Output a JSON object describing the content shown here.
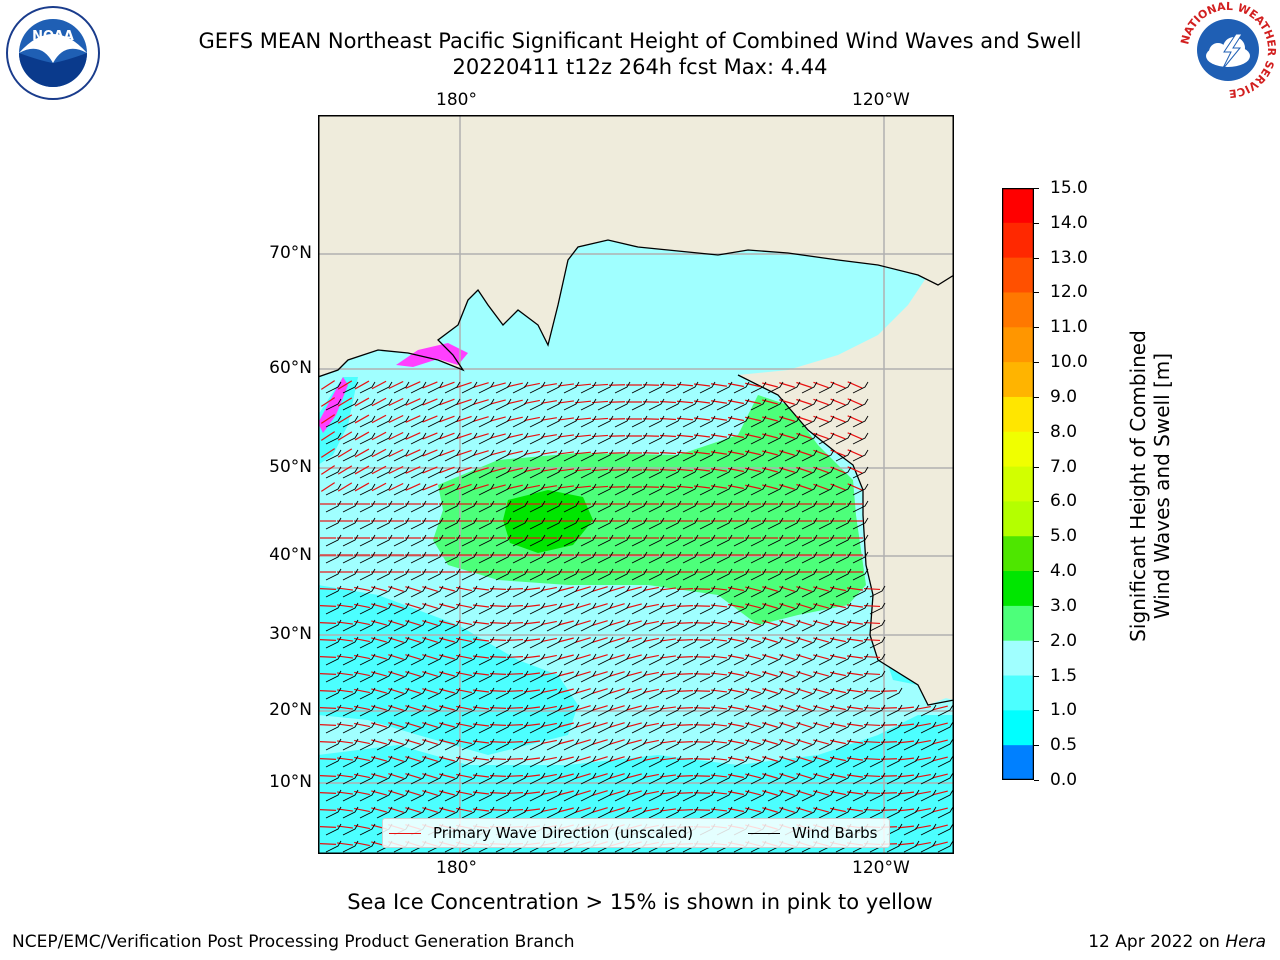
{
  "title": {
    "line1": "GEFS MEAN Northeast Pacific Significant Height of Combined Wind Waves and Swell",
    "line2": "20220411 t12z 264h fcst   Max: 4.44"
  },
  "logos": {
    "left": {
      "name": "noaa-logo",
      "text": "NOAA"
    },
    "right": {
      "name": "nws-logo",
      "text": "NATIONAL WEATHER SERVICE"
    }
  },
  "map": {
    "top_lon_labels": [
      "180°",
      "120°W"
    ],
    "bottom_lon_labels": [
      "180°",
      "120°W"
    ],
    "lat_labels": [
      "70°N",
      "60°N",
      "50°N",
      "40°N",
      "30°N",
      "20°N",
      "10°N"
    ],
    "colors": {
      "land": "#efecdc",
      "ice_free_ocean": "#ffffff",
      "waves_1_5_2": "#4cffff",
      "waves_2_3": "#a0ffff",
      "waves_3_4": "#4dff7a",
      "waves_4_5": "#00e600",
      "wave_arrows": "#e81010",
      "wind_barbs": "#000000",
      "sea_ice": "#ff40ff",
      "grid": "#b0b0b0"
    }
  },
  "legend": {
    "primary_wave": "Primary Wave Direction (unscaled)",
    "wind_barbs": "Wind Barbs"
  },
  "colorbar": {
    "label_line1": "Significant Height of Combined",
    "label_line2": "Wind Waves and Swell [m]",
    "ticks": [
      "15.0",
      "14.0",
      "13.0",
      "12.0",
      "11.0",
      "10.0",
      "9.0",
      "8.0",
      "7.0",
      "6.0",
      "5.0",
      "4.0",
      "3.0",
      "2.0",
      "1.5",
      "1.0",
      "0.5",
      "0.0"
    ],
    "colors": [
      "#ff0000",
      "#ff2800",
      "#ff5000",
      "#ff7800",
      "#ff9600",
      "#ffb400",
      "#ffe600",
      "#f0ff00",
      "#d2ff00",
      "#b4ff00",
      "#4ee600",
      "#00e600",
      "#4dff7a",
      "#a0ffff",
      "#4cffff",
      "#00ffff",
      "#0080ff",
      "#0000ff"
    ]
  },
  "caption": "Sea Ice Concentration > 15% is shown in pink to yellow",
  "footer": {
    "left": "NCEP/EMC/Verification Post Processing Product Generation Branch",
    "date": "12 Apr 2022 on",
    "host": "Hera"
  }
}
